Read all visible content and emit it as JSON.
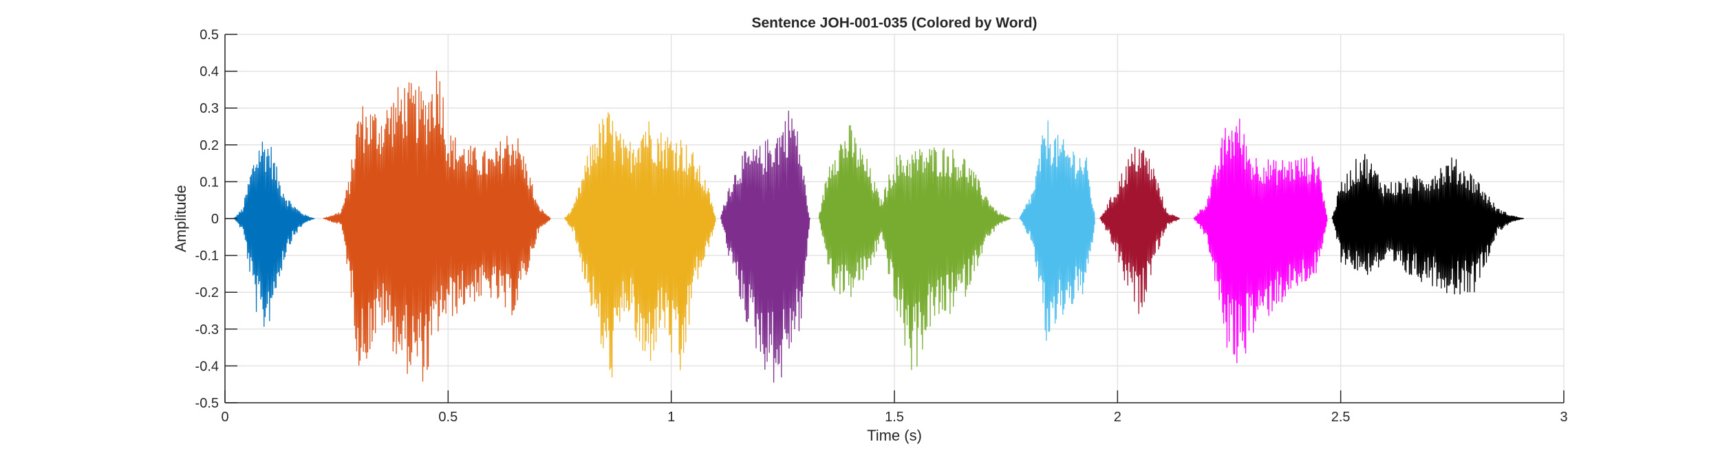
{
  "chart_data": {
    "type": "line",
    "title": "Sentence JOH-001-035 (Colored by Word)",
    "xlabel": "Time (s)",
    "ylabel": "Amplitude",
    "xlim": [
      0,
      3
    ],
    "ylim": [
      -0.5,
      0.5
    ],
    "x_ticks": [
      0,
      0.5,
      1,
      1.5,
      2,
      2.5,
      3
    ],
    "x_tick_labels": [
      "0",
      "0.5",
      "1",
      "1.5",
      "2",
      "2.5",
      "3"
    ],
    "y_ticks": [
      0.5,
      0.4,
      0.3,
      0.2,
      0.1,
      0,
      -0.1,
      -0.2,
      -0.3,
      -0.4,
      -0.5
    ],
    "y_tick_labels": [
      "0.5",
      "0.4",
      "0.3",
      "0.2",
      "0.1",
      "0",
      "-0.1",
      "-0.2",
      "-0.3",
      "-0.4",
      "-0.5"
    ],
    "grid": true,
    "legend": "none",
    "series": [
      {
        "color": "#0072BD",
        "x": [
          0.0,
          0.02,
          0.04,
          0.06,
          0.08,
          0.1,
          0.12,
          0.14,
          0.16,
          0.18,
          0.2
        ],
        "ymax": [
          0.0,
          0.0,
          0.03,
          0.15,
          0.23,
          0.22,
          0.12,
          0.06,
          0.03,
          0.01,
          0.0
        ],
        "ymin": [
          0.0,
          0.0,
          -0.04,
          -0.2,
          -0.33,
          -0.28,
          -0.17,
          -0.08,
          -0.04,
          -0.01,
          0.0
        ]
      },
      {
        "color": "#D95319",
        "x": [
          0.22,
          0.26,
          0.28,
          0.3,
          0.35,
          0.4,
          0.45,
          0.48,
          0.5,
          0.55,
          0.6,
          0.63,
          0.65,
          0.68,
          0.7,
          0.73
        ],
        "ymax": [
          0.0,
          0.02,
          0.12,
          0.32,
          0.3,
          0.38,
          0.35,
          0.45,
          0.24,
          0.2,
          0.18,
          0.24,
          0.25,
          0.14,
          0.04,
          0.0
        ],
        "ymin": [
          0.0,
          -0.02,
          -0.2,
          -0.43,
          -0.3,
          -0.42,
          -0.45,
          -0.3,
          -0.28,
          -0.23,
          -0.22,
          -0.27,
          -0.26,
          -0.14,
          -0.04,
          0.0
        ]
      },
      {
        "color": "#EDB120",
        "x": [
          0.76,
          0.78,
          0.8,
          0.83,
          0.86,
          0.9,
          0.94,
          0.98,
          1.02,
          1.05,
          1.08,
          1.1
        ],
        "ymax": [
          0.0,
          0.03,
          0.12,
          0.25,
          0.3,
          0.2,
          0.29,
          0.24,
          0.23,
          0.18,
          0.1,
          0.0
        ],
        "ymin": [
          0.0,
          -0.04,
          -0.15,
          -0.3,
          -0.47,
          -0.25,
          -0.44,
          -0.3,
          -0.47,
          -0.2,
          -0.1,
          0.0
        ]
      },
      {
        "color": "#7E2F8E",
        "x": [
          1.11,
          1.13,
          1.16,
          1.2,
          1.24,
          1.27,
          1.29,
          1.31
        ],
        "ymax": [
          0.0,
          0.1,
          0.18,
          0.2,
          0.25,
          0.32,
          0.2,
          0.0
        ],
        "ymin": [
          0.0,
          -0.12,
          -0.26,
          -0.4,
          -0.47,
          -0.35,
          -0.3,
          0.0
        ]
      },
      {
        "color": "#77AC30",
        "x": [
          1.33,
          1.36,
          1.4,
          1.44,
          1.47,
          1.5,
          1.54,
          1.58,
          1.62,
          1.66,
          1.7,
          1.73,
          1.76
        ],
        "ymax": [
          0.0,
          0.2,
          0.26,
          0.16,
          0.05,
          0.17,
          0.19,
          0.2,
          0.2,
          0.17,
          0.08,
          0.02,
          0.0
        ],
        "ymin": [
          0.0,
          -0.2,
          -0.22,
          -0.16,
          -0.05,
          -0.25,
          -0.44,
          -0.3,
          -0.27,
          -0.21,
          -0.08,
          -0.02,
          0.0
        ]
      },
      {
        "color": "#4DBEEE",
        "x": [
          1.78,
          1.81,
          1.84,
          1.87,
          1.9,
          1.93,
          1.95
        ],
        "ymax": [
          0.0,
          0.08,
          0.28,
          0.22,
          0.2,
          0.17,
          0.0
        ],
        "ymin": [
          0.0,
          -0.08,
          -0.36,
          -0.28,
          -0.24,
          -0.2,
          0.0
        ]
      },
      {
        "color": "#A2142F",
        "x": [
          1.96,
          1.99,
          2.02,
          2.05,
          2.08,
          2.11,
          2.14
        ],
        "ymax": [
          0.0,
          0.07,
          0.16,
          0.22,
          0.15,
          0.02,
          0.0
        ],
        "ymin": [
          0.0,
          -0.08,
          -0.2,
          -0.27,
          -0.12,
          -0.02,
          0.0
        ]
      },
      {
        "color": "#FF00FF",
        "x": [
          2.17,
          2.2,
          2.24,
          2.27,
          2.3,
          2.35,
          2.4,
          2.45,
          2.47
        ],
        "ymax": [
          0.0,
          0.05,
          0.25,
          0.29,
          0.18,
          0.16,
          0.17,
          0.17,
          0.0
        ],
        "ymin": [
          0.0,
          -0.06,
          -0.35,
          -0.41,
          -0.33,
          -0.25,
          -0.2,
          -0.15,
          0.0
        ]
      },
      {
        "color": "#000000",
        "x": [
          2.48,
          2.5,
          2.55,
          2.6,
          2.65,
          2.7,
          2.75,
          2.8,
          2.85,
          2.88,
          2.91
        ],
        "ymax": [
          0.0,
          0.1,
          0.19,
          0.1,
          0.11,
          0.13,
          0.17,
          0.12,
          0.03,
          0.01,
          0.0
        ],
        "ymin": [
          0.0,
          -0.12,
          -0.16,
          -0.13,
          -0.16,
          -0.18,
          -0.21,
          -0.2,
          -0.04,
          -0.01,
          0.0
        ]
      }
    ]
  }
}
